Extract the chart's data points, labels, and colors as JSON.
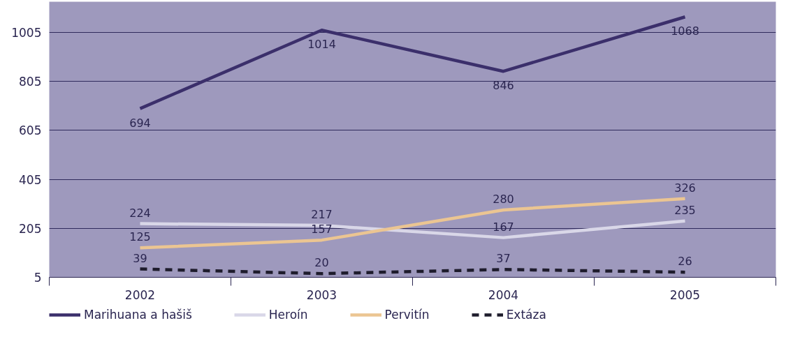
{
  "chart_data": {
    "type": "line",
    "categories": [
      "2002",
      "2003",
      "2004",
      "2005"
    ],
    "series": [
      {
        "name": "Marihuana a hašiš",
        "color": "#3b2f6b",
        "values": [
          694,
          1014,
          846,
          1068
        ]
      },
      {
        "name": "Heroín",
        "color": "#d9d7e8",
        "values": [
          224,
          217,
          167,
          235
        ]
      },
      {
        "name": "Pervitín",
        "color": "#ebc592",
        "values": [
          125,
          157,
          280,
          326
        ]
      },
      {
        "name": "Extáza",
        "color": "#1e1c2c",
        "values": [
          39,
          20,
          37,
          26
        ],
        "line_style": "dashed"
      }
    ],
    "ylim": [
      5,
      1130
    ],
    "yticks": [
      5,
      205,
      405,
      605,
      805,
      1005
    ],
    "grid": "y",
    "legend": "bottom",
    "data_labels": true
  }
}
